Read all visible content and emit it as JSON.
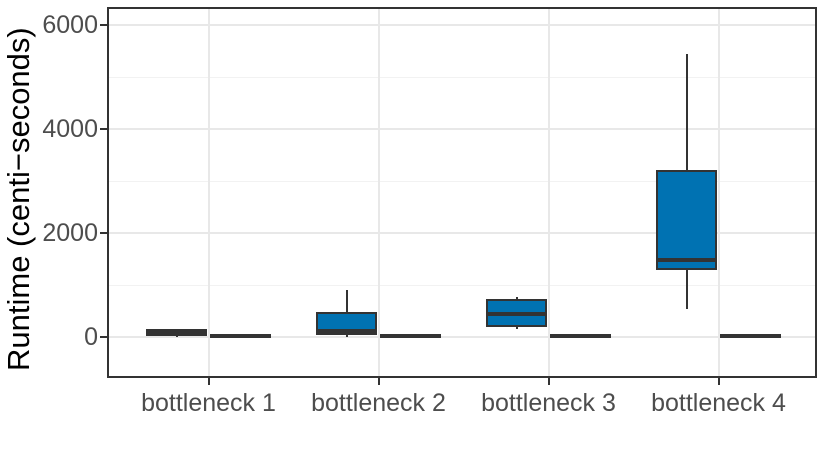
{
  "chart_data": {
    "type": "boxplot",
    "title": "",
    "xlabel": "",
    "ylabel": "Runtime (centi−seconds)",
    "categories": [
      "bottleneck 1",
      "bottleneck 2",
      "bottleneck 3",
      "bottleneck 4"
    ],
    "y_ticks": [
      0,
      2000,
      4000,
      6000
    ],
    "y_tick_labels": [
      "0",
      "2000",
      "4000",
      "6000"
    ],
    "y_minor_ticks": [
      1000,
      3000,
      5000
    ],
    "ylim": [
      -800,
      6350
    ],
    "grid": "horizontal major+minor, vertical major at categories",
    "legend": "none",
    "series": [
      {
        "name": "left-box",
        "boxes": [
          {
            "category": "bottleneck 1",
            "whisker_low": 0,
            "q1": 30,
            "median": 85,
            "q3": 140,
            "whisker_high": 160
          },
          {
            "category": "bottleneck 2",
            "whisker_low": 0,
            "q1": 55,
            "median": 110,
            "q3": 460,
            "whisker_high": 910
          },
          {
            "category": "bottleneck 3",
            "whisker_low": 145,
            "q1": 205,
            "median": 435,
            "q3": 720,
            "whisker_high": 775
          },
          {
            "category": "bottleneck 4",
            "whisker_low": 540,
            "q1": 1300,
            "median": 1480,
            "q3": 3200,
            "whisker_high": 5440
          }
        ]
      },
      {
        "name": "right-box",
        "boxes": [
          {
            "category": "bottleneck 1",
            "whisker_low": 0,
            "q1": 5,
            "median": 18,
            "q3": 30,
            "whisker_high": 38
          },
          {
            "category": "bottleneck 2",
            "whisker_low": 0,
            "q1": 5,
            "median": 18,
            "q3": 30,
            "whisker_high": 38
          },
          {
            "category": "bottleneck 3",
            "whisker_low": 0,
            "q1": 5,
            "median": 18,
            "q3": 30,
            "whisker_high": 38
          },
          {
            "category": "bottleneck 4",
            "whisker_low": 0,
            "q1": 5,
            "median": 18,
            "q3": 30,
            "whisker_high": 38
          }
        ]
      }
    ],
    "colors": {
      "box_fill": "#0072b2",
      "box_stroke": "#333333",
      "median": "#333333",
      "grid_major": "#e8e8e8",
      "grid_minor": "#f2f2f2",
      "panel_border": "#333333",
      "axis_text": "#4d4d4d",
      "axis_title": "#000000",
      "tick_mark": "#333333",
      "background": "#ffffff"
    }
  }
}
